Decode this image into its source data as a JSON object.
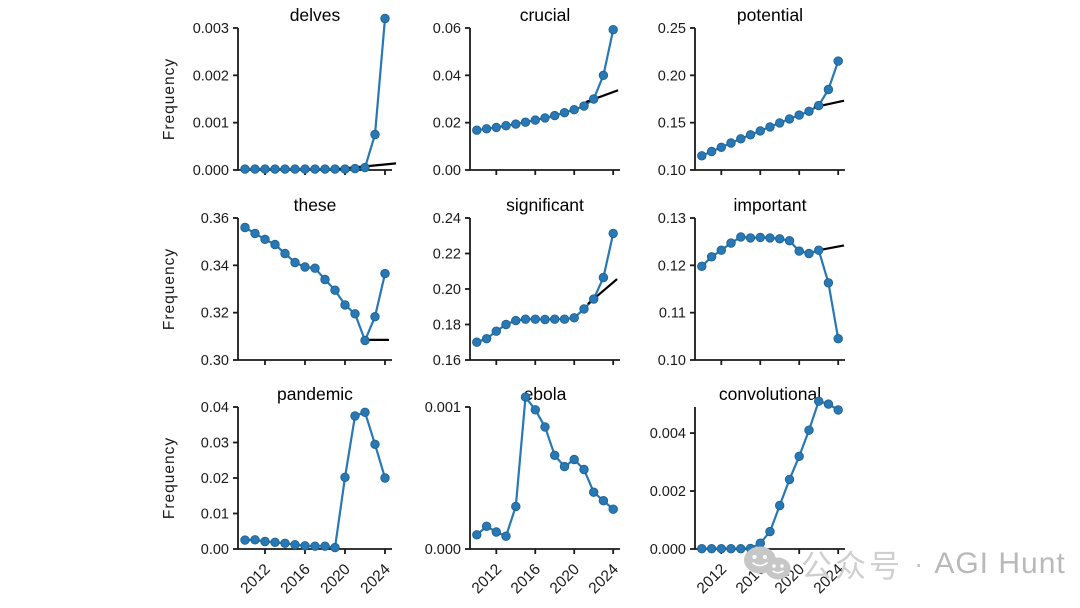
{
  "watermark": {
    "icon": "wechat-icon",
    "text_cn": "公众号",
    "separator": "·",
    "text_en": "AGI Hunt"
  },
  "chart_data": {
    "type": "line",
    "layout": "3x3-grid",
    "ylabel": "Frequency",
    "series_color": "#2878b5",
    "marker_edge_color": "#1d5f8a",
    "trend_color": "#000000",
    "axis_color": "#1a1a1a",
    "x_years": [
      2010,
      2011,
      2012,
      2013,
      2014,
      2015,
      2016,
      2017,
      2018,
      2019,
      2020,
      2021,
      2022,
      2023,
      2024
    ],
    "xticks": [
      2012,
      2016,
      2020,
      2024
    ],
    "xtick_labels": [
      "2012",
      "2016",
      "2020",
      "2024"
    ],
    "xlim": [
      2009.3,
      2024.7
    ],
    "subplots": [
      {
        "title": "delves",
        "values": [
          2e-05,
          2e-05,
          2e-05,
          2e-05,
          2e-05,
          2e-05,
          2e-05,
          2e-05,
          2e-05,
          2e-05,
          2e-05,
          3e-05,
          5e-05,
          0.00075,
          0.0032
        ],
        "yticks": [
          0,
          0.001,
          0.002,
          0.003
        ],
        "ytick_labels": [
          "0.000",
          "0.001",
          "0.002",
          "0.003"
        ],
        "ylim": [
          0,
          0.003
        ],
        "trend": {
          "x": [
            2018.8,
            2025.1
          ],
          "y": [
            1e-05,
            0.00014
          ]
        }
      },
      {
        "title": "crucial",
        "values": [
          0.0168,
          0.0174,
          0.018,
          0.0187,
          0.0194,
          0.0202,
          0.0211,
          0.022,
          0.023,
          0.0242,
          0.0255,
          0.027,
          0.03,
          0.04,
          0.0593
        ],
        "yticks": [
          0,
          0.02,
          0.04,
          0.06
        ],
        "ytick_labels": [
          "0.00",
          "0.02",
          "0.04",
          "0.06"
        ],
        "ylim": [
          0,
          0.06
        ],
        "trend": {
          "x": [
            2021.2,
            2024.5
          ],
          "y": [
            0.0287,
            0.0337
          ]
        }
      },
      {
        "title": "potential",
        "values": [
          0.115,
          0.1195,
          0.124,
          0.1285,
          0.133,
          0.1372,
          0.1413,
          0.1455,
          0.1498,
          0.154,
          0.158,
          0.162,
          0.168,
          0.185,
          0.215
        ],
        "yticks": [
          0.1,
          0.15,
          0.2,
          0.25
        ],
        "ytick_labels": [
          "0.10",
          "0.15",
          "0.20",
          "0.25"
        ],
        "ylim": [
          0.1,
          0.25
        ],
        "trend": {
          "x": [
            2021.5,
            2024.6
          ],
          "y": [
            0.1662,
            0.1732
          ]
        }
      },
      {
        "title": "these",
        "values": [
          0.356,
          0.3535,
          0.351,
          0.3488,
          0.345,
          0.3412,
          0.3393,
          0.3388,
          0.334,
          0.3295,
          0.3233,
          0.3195,
          0.3083,
          0.3183,
          0.3365
        ],
        "yticks": [
          0.3,
          0.32,
          0.34,
          0.36
        ],
        "ytick_labels": [
          "0.30",
          "0.32",
          "0.34",
          "0.36"
        ],
        "ylim": [
          0.3,
          0.36
        ],
        "trend": {
          "x": [
            2022,
            2024.4
          ],
          "y": [
            0.3085,
            0.3085
          ]
        }
      },
      {
        "title": "significant",
        "values": [
          0.17,
          0.172,
          0.1762,
          0.18,
          0.1822,
          0.183,
          0.183,
          0.1828,
          0.183,
          0.183,
          0.1838,
          0.1888,
          0.1943,
          0.2065,
          0.2313
        ],
        "yticks": [
          0.16,
          0.18,
          0.2,
          0.22,
          0.24
        ],
        "ytick_labels": [
          "0.16",
          "0.18",
          "0.20",
          "0.22",
          "0.24"
        ],
        "ylim": [
          0.16,
          0.24
        ],
        "trend": {
          "x": [
            2021.4,
            2024.4
          ],
          "y": [
            0.1916,
            0.2056
          ]
        }
      },
      {
        "title": "important",
        "values": [
          0.1198,
          0.1218,
          0.1232,
          0.1247,
          0.126,
          0.1258,
          0.1259,
          0.1258,
          0.1256,
          0.1252,
          0.123,
          0.1225,
          0.1232,
          0.1163,
          0.1045
        ],
        "yticks": [
          0.1,
          0.11,
          0.12,
          0.13
        ],
        "ytick_labels": [
          "0.10",
          "0.11",
          "0.12",
          "0.13"
        ],
        "ylim": [
          0.1,
          0.13
        ],
        "trend": {
          "x": [
            2022,
            2024.6
          ],
          "y": [
            0.1232,
            0.1242
          ]
        }
      },
      {
        "title": "pandemic",
        "values": [
          0.0025,
          0.0026,
          0.0021,
          0.0019,
          0.0016,
          0.0012,
          0.0009,
          0.0008,
          0.0008,
          0.0004,
          0.0202,
          0.0375,
          0.0385,
          0.0295,
          0.02
        ],
        "yticks": [
          0,
          0.01,
          0.02,
          0.03,
          0.04
        ],
        "ytick_labels": [
          "0.00",
          "0.01",
          "0.02",
          "0.03",
          "0.04"
        ],
        "ylim": [
          0,
          0.04
        ],
        "trend": null
      },
      {
        "title": "ebola",
        "values": [
          0.0001,
          0.00016,
          0.00012,
          9e-05,
          0.0003,
          0.00107,
          0.00098,
          0.00086,
          0.00066,
          0.00058,
          0.00063,
          0.00056,
          0.0004,
          0.00034,
          0.00028
        ],
        "yticks": [
          0,
          0.001
        ],
        "ytick_labels": [
          "0.000",
          "0.001"
        ],
        "ylim": [
          0,
          0.001
        ],
        "trend": null
      },
      {
        "title": "convolutional",
        "values": [
          1e-05,
          1e-05,
          1e-05,
          1e-05,
          1e-05,
          2e-05,
          0.0002,
          0.0006,
          0.0015,
          0.0024,
          0.0032,
          0.0041,
          0.0051,
          0.005,
          0.0048
        ],
        "yticks": [
          0,
          0.002,
          0.004
        ],
        "ytick_labels": [
          "0.000",
          "0.002",
          "0.004"
        ],
        "ylim": [
          0,
          0.0049
        ],
        "trend": null
      }
    ]
  }
}
